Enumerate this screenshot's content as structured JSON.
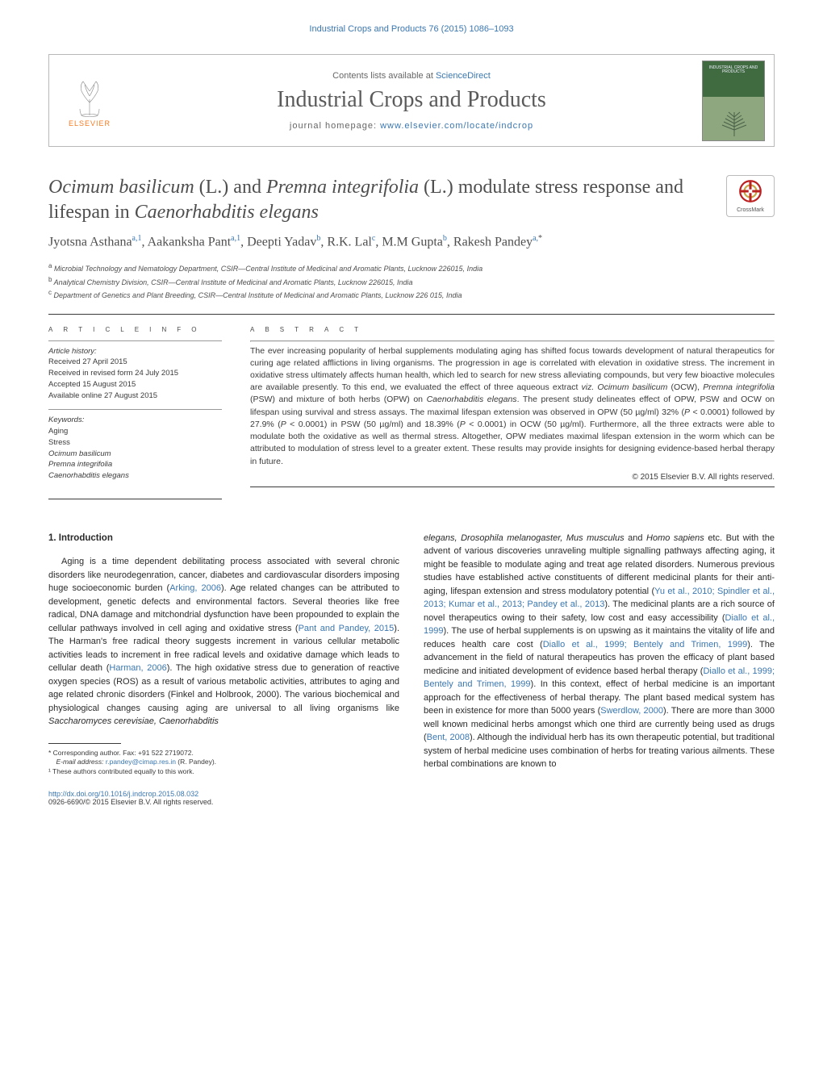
{
  "colors": {
    "link": "#3a77b0",
    "text": "#3a3a3a",
    "title": "#4e4e4e",
    "elsevier_orange": "#f47b20",
    "cover_dark": "#406a3f",
    "cover_light": "#8fa77f",
    "background": "#ffffff",
    "rule": "#3a3a3a",
    "rule_light": "#999999",
    "box_border": "#b8b8b8"
  },
  "typography": {
    "running_header_size": 11,
    "journal_title_size": 28,
    "article_title_size": 24,
    "authors_size": 16,
    "affiliations_size": 9,
    "abstract_size": 10.5,
    "body_size": 11,
    "footnote_size": 8.5,
    "section_letterspacing": 5
  },
  "running_header": "Industrial Crops and Products 76 (2015) 1086–1093",
  "topbox": {
    "publisher": "ELSEVIER",
    "contents_prefix": "Contents lists available at ",
    "contents_link": "ScienceDirect",
    "journal_title": "Industrial Crops and Products",
    "homepage_prefix": "journal homepage: ",
    "homepage_link": "www.elsevier.com/locate/indcrop",
    "cover_title": "INDUSTRIAL CROPS AND PRODUCTS"
  },
  "crossmark_label": "CrossMark",
  "article_title_parts": {
    "p1_it": "Ocimum basilicum",
    "p2": " (L.) and ",
    "p3_it": "Premna integrifolia",
    "p4": " (L.) modulate stress response and lifespan in ",
    "p5_it": "Caenorhabditis elegans"
  },
  "authors_html": "Jyotsna Asthana<sup>a,1</sup>, Aakanksha Pant<sup>a,1</sup>, Deepti Yadav<sup>b</sup>, R.K. Lal<sup>c</sup>, M.M Gupta<sup>b</sup>, Rakesh Pandey<sup>a,</sup><sup class=\"black\">*</sup>",
  "affiliations": {
    "a": "Microbial Technology and Nematology Department, CSIR—Central Institute of Medicinal and Aromatic Plants, Lucknow 226015, India",
    "b": "Analytical Chemistry Division, CSIR—Central Institute of Medicinal and Aromatic Plants, Lucknow 226015, India",
    "c": "Department of Genetics and Plant Breeding, CSIR—Central Institute of Medicinal and Aromatic Plants, Lucknow 226 015, India"
  },
  "headings": {
    "article_info": "a r t i c l e   i n f o",
    "abstract": "a b s t r a c t"
  },
  "article_info": {
    "history_label": "Article history:",
    "received": "Received 27 April 2015",
    "revised": "Received in revised form 24 July 2015",
    "accepted": "Accepted 15 August 2015",
    "online": "Available online 27 August 2015",
    "keywords_label": "Keywords:",
    "keywords": [
      "Aging",
      "Stress",
      "Ocimum basilicum",
      "Premna integrifolia",
      "Caenorhabditis elegans"
    ]
  },
  "abstract": "The ever increasing popularity of herbal supplements modulating aging has shifted focus towards development of natural therapeutics for curing age related afflictions in living organisms. The progression in age is correlated with elevation in oxidative stress. The increment in oxidative stress ultimately affects human health, which led to search for new stress alleviating compounds, but very few bioactive molecules are available presently. To this end, we evaluated the effect of three aqueous extract viz. Ocimum basilicum (OCW), Premna integrifolia (PSW) and mixture of both herbs (OPW) on Caenorhabditis elegans. The present study delineates effect of OPW, PSW and OCW on lifespan using survival and stress assays. The maximal lifespan extension was observed in OPW (50 µg/ml) 32% (P < 0.0001) followed by 27.9% (P < 0.0001) in PSW (50 µg/ml) and 18.39% (P < 0.0001) in OCW (50 µg/ml). Furthermore, all the three extracts were able to modulate both the oxidative as well as thermal stress. Altogether, OPW mediates maximal lifespan extension in the worm which can be attributed to modulation of stress level to a greater extent. These results may provide insights for designing evidence-based herbal therapy in future.",
  "abstract_copyright": "© 2015 Elsevier B.V. All rights reserved.",
  "section1_heading": "1.  Introduction",
  "body_col1_p1": "Aging is a time dependent debilitating process associated with several chronic disorders like neurodegenration, cancer, diabetes and cardiovascular disorders imposing huge socioeconomic burden (",
  "body_col1_p1_link": "Arking, 2006",
  "body_col1_p1b": "). Age related changes can be attributed to development, genetic defects and environmental factors. Several theories like free radical, DNA damage and mitchondrial dysfunction have been propounded to explain the cellular pathways involved in cell aging and oxidative stress (",
  "body_col1_p1_link2": "Pant and Pandey, 2015",
  "body_col1_p1c": "). The Harman's free radical theory suggests increment in various cellular metabolic activities leads to increment in free radical levels and oxidative damage which leads to cellular death (",
  "body_col1_p1_link3": "Harman, 2006",
  "body_col1_p1d": "). The high oxidative stress due to generation of reactive oxygen species (ROS) as a result of various metabolic activities, attributes to aging and age related chronic disorders (Finkel and Holbrook, 2000). The various biochemical and physiological changes causing aging are universal to all living organisms like ",
  "body_col1_p1_it1": "Saccharomyces cerevisiae, Caenorhabditis",
  "body_col2_p1_it": "elegans, Drosophila melanogaster, Mus musculus",
  "body_col2_p1a": " and ",
  "body_col2_p1_it2": "Homo sapiens",
  "body_col2_p1b": " etc. But with the advent of various discoveries unraveling multiple signalling pathways affecting aging, it might be feasible to modulate aging and treat age related disorders. Numerous previous studies have established active constituents of different medicinal plants for their anti- aging, lifespan extension and stress modulatory potential (",
  "body_col2_p1_link1": "Yu et al., 2010; Spindler et al., 2013; Kumar et al., 2013; Pandey et al., 2013",
  "body_col2_p1c": "). The medicinal plants are a rich source of novel therapeutics owing to their safety, low cost and easy accessibility (",
  "body_col2_p1_link2": "Diallo et al., 1999",
  "body_col2_p1d": "). The use of herbal supplements is on upswing as it maintains the vitality of life and reduces health care cost (",
  "body_col2_p1_link3": "Diallo et al., 1999; Bentely and Trimen, 1999",
  "body_col2_p1e": "). The advancement in the field of natural therapeutics has proven the efficacy of plant based medicine and initiated development of evidence based herbal therapy (",
  "body_col2_p1_link4": "Diallo et al., 1999; Bentely and Trimen, 1999",
  "body_col2_p1f": "). In this context, effect of herbal medicine is an important approach for the effectiveness of herbal therapy. The plant based medical system has been in existence for more than 5000 years (",
  "body_col2_p1_link5": "Swerdlow, 2000",
  "body_col2_p1g": "). There are more than 3000 well known medicinal herbs amongst which one third are currently being used as drugs (",
  "body_col2_p1_link6": "Bent, 2008",
  "body_col2_p1h": "). Although the individual herb has its own therapeutic potential, but traditional system of herbal medicine uses combination of herbs for treating various ailments. These herbal combinations are known to",
  "footnotes": {
    "corresponding": "* Corresponding author. Fax: +91 522 2719072.",
    "email_label": "E-mail address: ",
    "email": "r.pandey@cimap.res.in",
    "email_tail": " (R. Pandey).",
    "equal": "¹ These authors contributed equally to this work."
  },
  "doi": {
    "link": "http://dx.doi.org/10.1016/j.indcrop.2015.08.032",
    "line2": "0926-6690/© 2015 Elsevier B.V. All rights reserved."
  }
}
